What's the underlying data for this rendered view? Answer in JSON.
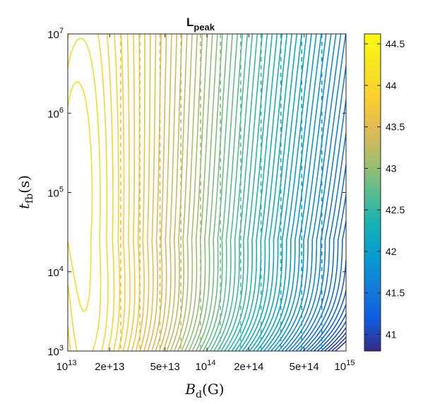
{
  "chart_data": {
    "type": "contour",
    "title": {
      "main": "L",
      "subscript": "peak"
    },
    "xlabel": {
      "symbol": "B",
      "subscript": "d",
      "unit": "(G)"
    },
    "ylabel": {
      "symbol": "t",
      "subscript": "fb",
      "unit": "(s)"
    },
    "x_scale": "log",
    "y_scale": "log",
    "xlim": [
      10000000000000.0,
      1000000000000000.0
    ],
    "ylim": [
      1000,
      10000000
    ],
    "x_ticks": [
      {
        "value": 10000000000000.0,
        "base": "10",
        "exp": "13"
      },
      {
        "value": 20000000000000.0,
        "label": "2e+13"
      },
      {
        "value": 50000000000000.0,
        "label": "5e+13"
      },
      {
        "value": 100000000000000.0,
        "base": "10",
        "exp": "14"
      },
      {
        "value": 200000000000000.0,
        "label": "2e+14"
      },
      {
        "value": 500000000000000.0,
        "label": "5e+14"
      },
      {
        "value": 1000000000000000.0,
        "base": "10",
        "exp": "15"
      }
    ],
    "y_ticks": [
      {
        "value": 1000,
        "base": "10",
        "exp": "3"
      },
      {
        "value": 10000,
        "base": "10",
        "exp": "4"
      },
      {
        "value": 100000,
        "base": "10",
        "exp": "5"
      },
      {
        "value": 1000000,
        "base": "10",
        "exp": "6"
      },
      {
        "value": 10000000,
        "base": "10",
        "exp": "7"
      }
    ],
    "colorbar": {
      "colormap": "parula",
      "range": [
        40.8,
        44.62
      ],
      "ticks": [
        "41",
        "41.5",
        "42",
        "42.5",
        "43",
        "43.5",
        "44",
        "44.5"
      ]
    },
    "solid_contours": {
      "level_min": 40.9,
      "level_max": 44.6,
      "level_step": 0.05
    },
    "dashed_lines": [
      {
        "x": 24000000000000.0,
        "level": 43.6
      },
      {
        "x": 33000000000000.0,
        "level": 43.55
      },
      {
        "x": 46000000000000.0,
        "level": 43.4
      },
      {
        "x": 65000000000000.0,
        "level": 43.25
      },
      {
        "x": 90000000000000.0,
        "level": 43.05
      },
      {
        "x": 125000000000000.0,
        "level": 42.85
      },
      {
        "x": 175000000000000.0,
        "level": 42.7
      },
      {
        "x": 245000000000000.0,
        "level": 42.5
      },
      {
        "x": 340000000000000.0,
        "level": 42.35
      },
      {
        "x": 480000000000000.0,
        "level": 42.15
      },
      {
        "x": 670000000000000.0,
        "level": 42.0
      }
    ],
    "grid": false
  }
}
